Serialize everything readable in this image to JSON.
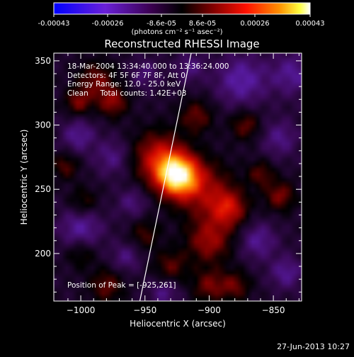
{
  "colorbar": {
    "tick_labels": [
      "-0.00043",
      "-0.00026",
      "-8.6e-05",
      "8.6e-05",
      "0.00026",
      "0.00043"
    ],
    "units": "(photons cm⁻² s⁻¹ asec⁻²)",
    "min": -0.00043,
    "max": 0.00043
  },
  "header": {
    "lines": [
      "18-Mar-2004 13:34:40.000 to 13:36:24.000",
      "Detectors: 4F 5F 6F 7F 8F, Att 0",
      "Energy Range: 12.0 - 25.0 keV",
      "Clean     Total counts: 1.42E+03"
    ]
  },
  "peak_label": "Position of Peak = [-925,261]",
  "timestamp": "27-Jun-2013 10:27",
  "chart_data": {
    "type": "heatmap",
    "title": "Reconstructed RHESSI Image",
    "xlabel": "Heliocentric X (arcsec)",
    "ylabel": "Heliocentric Y (arcsec)",
    "xlim": [
      -1021,
      -828
    ],
    "ylim": [
      163,
      356
    ],
    "x_ticks": [
      -1000,
      -950,
      -900,
      -850
    ],
    "y_ticks": [
      200,
      250,
      300,
      350
    ],
    "colormap": [
      "#0000ff",
      "#8040ff",
      "#400060",
      "#000000",
      "#800000",
      "#ff0000",
      "#ff8000",
      "#ffff00",
      "#ffffff"
    ],
    "peak": {
      "x": -925,
      "y": 261
    },
    "limb_line": [
      [
        -954,
        163
      ],
      [
        -914,
        356
      ]
    ],
    "blobs": [
      {
        "x": -925,
        "y": 261,
        "amp": 1.0,
        "sigma": 11
      },
      {
        "x": -940,
        "y": 275,
        "amp": 0.45,
        "sigma": 14
      },
      {
        "x": -905,
        "y": 250,
        "amp": 0.35,
        "sigma": 16
      },
      {
        "x": -885,
        "y": 235,
        "amp": 0.45,
        "sigma": 10
      },
      {
        "x": -900,
        "y": 210,
        "amp": 0.38,
        "sigma": 12
      },
      {
        "x": -975,
        "y": 318,
        "amp": 0.35,
        "sigma": 8
      },
      {
        "x": -1002,
        "y": 318,
        "amp": 0.32,
        "sigma": 7
      },
      {
        "x": -988,
        "y": 335,
        "amp": 0.3,
        "sigma": 10
      },
      {
        "x": -910,
        "y": 307,
        "amp": 0.28,
        "sigma": 9
      },
      {
        "x": -872,
        "y": 300,
        "amp": 0.28,
        "sigma": 8
      },
      {
        "x": -860,
        "y": 262,
        "amp": 0.26,
        "sigma": 7
      },
      {
        "x": -845,
        "y": 245,
        "amp": 0.33,
        "sigma": 8
      },
      {
        "x": -950,
        "y": 215,
        "amp": 0.22,
        "sigma": 8
      },
      {
        "x": -1000,
        "y": 200,
        "amp": 0.2,
        "sigma": 8
      },
      {
        "x": -980,
        "y": 175,
        "amp": 0.28,
        "sigma": 9
      },
      {
        "x": -930,
        "y": 190,
        "amp": 0.26,
        "sigma": 9
      },
      {
        "x": -900,
        "y": 175,
        "amp": 0.3,
        "sigma": 9
      },
      {
        "x": -880,
        "y": 175,
        "amp": 0.28,
        "sigma": 8
      },
      {
        "x": -1012,
        "y": 268,
        "amp": 0.25,
        "sigma": 7
      },
      {
        "x": -998,
        "y": 240,
        "amp": 0.22,
        "sigma": 8
      },
      {
        "x": -1002,
        "y": 292,
        "amp": -0.25,
        "sigma": 9
      },
      {
        "x": -975,
        "y": 275,
        "amp": -0.22,
        "sigma": 10
      },
      {
        "x": -1000,
        "y": 220,
        "amp": -0.28,
        "sigma": 12
      },
      {
        "x": -960,
        "y": 240,
        "amp": -0.2,
        "sigma": 8
      },
      {
        "x": -875,
        "y": 335,
        "amp": -0.3,
        "sigma": 14
      },
      {
        "x": -835,
        "y": 340,
        "amp": -0.25,
        "sigma": 12
      },
      {
        "x": -845,
        "y": 290,
        "amp": -0.22,
        "sigma": 10
      },
      {
        "x": -862,
        "y": 210,
        "amp": -0.25,
        "sigma": 10
      },
      {
        "x": -840,
        "y": 185,
        "amp": -0.25,
        "sigma": 9
      },
      {
        "x": -935,
        "y": 170,
        "amp": -0.22,
        "sigma": 8
      },
      {
        "x": -915,
        "y": 345,
        "amp": -0.2,
        "sigma": 8
      },
      {
        "x": -950,
        "y": 340,
        "amp": -0.18,
        "sigma": 8
      },
      {
        "x": -965,
        "y": 197,
        "amp": -0.2,
        "sigma": 8
      }
    ]
  }
}
